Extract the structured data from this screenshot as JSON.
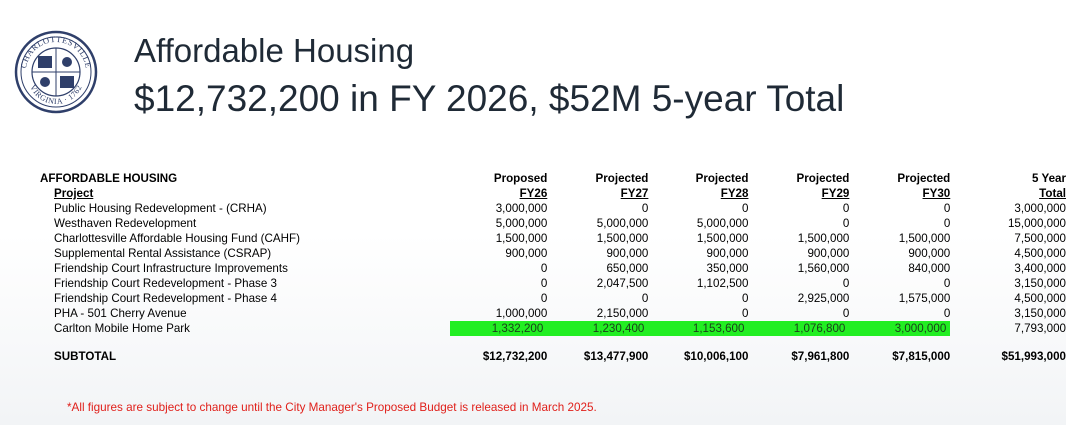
{
  "title": {
    "line1": "Affordable Housing",
    "line2": "$12,732,200 in FY 2026, $52M 5-year Total"
  },
  "seal": {
    "top_text": "CHARLOTTESVILLE",
    "bottom_text": "VIRGINIA · 1762"
  },
  "table": {
    "category": "AFFORDABLE HOUSING",
    "project_header": "Project",
    "col_top": [
      "Proposed",
      "Projected",
      "Projected",
      "Projected",
      "Projected",
      "5 Year"
    ],
    "col_bottom": [
      "FY26",
      "FY27",
      "FY28",
      "FY29",
      "FY30",
      "Total"
    ],
    "rows": [
      {
        "name": "Public Housing Redevelopment - (CRHA)",
        "values": [
          "3,000,000",
          "0",
          "0",
          "0",
          "0",
          "3,000,000"
        ]
      },
      {
        "name": "Westhaven Redevelopment",
        "values": [
          "5,000,000",
          "5,000,000",
          "5,000,000",
          "0",
          "0",
          "15,000,000"
        ]
      },
      {
        "name": "Charlottesville Affordable Housing Fund (CAHF)",
        "values": [
          "1,500,000",
          "1,500,000",
          "1,500,000",
          "1,500,000",
          "1,500,000",
          "7,500,000"
        ]
      },
      {
        "name": "Supplemental Rental Assistance (CSRAP)",
        "values": [
          "900,000",
          "900,000",
          "900,000",
          "900,000",
          "900,000",
          "4,500,000"
        ]
      },
      {
        "name": "Friendship Court Infrastructure Improvements",
        "values": [
          "0",
          "650,000",
          "350,000",
          "1,560,000",
          "840,000",
          "3,400,000"
        ]
      },
      {
        "name": "Friendship Court Redevelopment - Phase 3",
        "values": [
          "0",
          "2,047,500",
          "1,102,500",
          "0",
          "0",
          "3,150,000"
        ]
      },
      {
        "name": "Friendship Court Redevelopment - Phase 4",
        "values": [
          "0",
          "0",
          "0",
          "2,925,000",
          "1,575,000",
          "4,500,000"
        ]
      },
      {
        "name": "PHA - 501 Cherry Avenue",
        "values": [
          "1,000,000",
          "2,150,000",
          "0",
          "0",
          "0",
          "3,150,000"
        ]
      },
      {
        "name": "Carlton Mobile Home Park",
        "values": [
          "1,332,200",
          "1,230,400",
          "1,153,600",
          "1,076,800",
          "3,000,000",
          "7,793,000"
        ]
      }
    ],
    "subtotal_label": "SUBTOTAL",
    "subtotal_values": [
      "$12,732,200",
      "$13,477,900",
      "$10,006,100",
      "$7,961,800",
      "$7,815,000",
      "$51,993,000"
    ]
  },
  "highlight_color": "#22ee22",
  "footnote": "*All figures are subject to change until the City Manager's Proposed Budget is released in March 2025."
}
